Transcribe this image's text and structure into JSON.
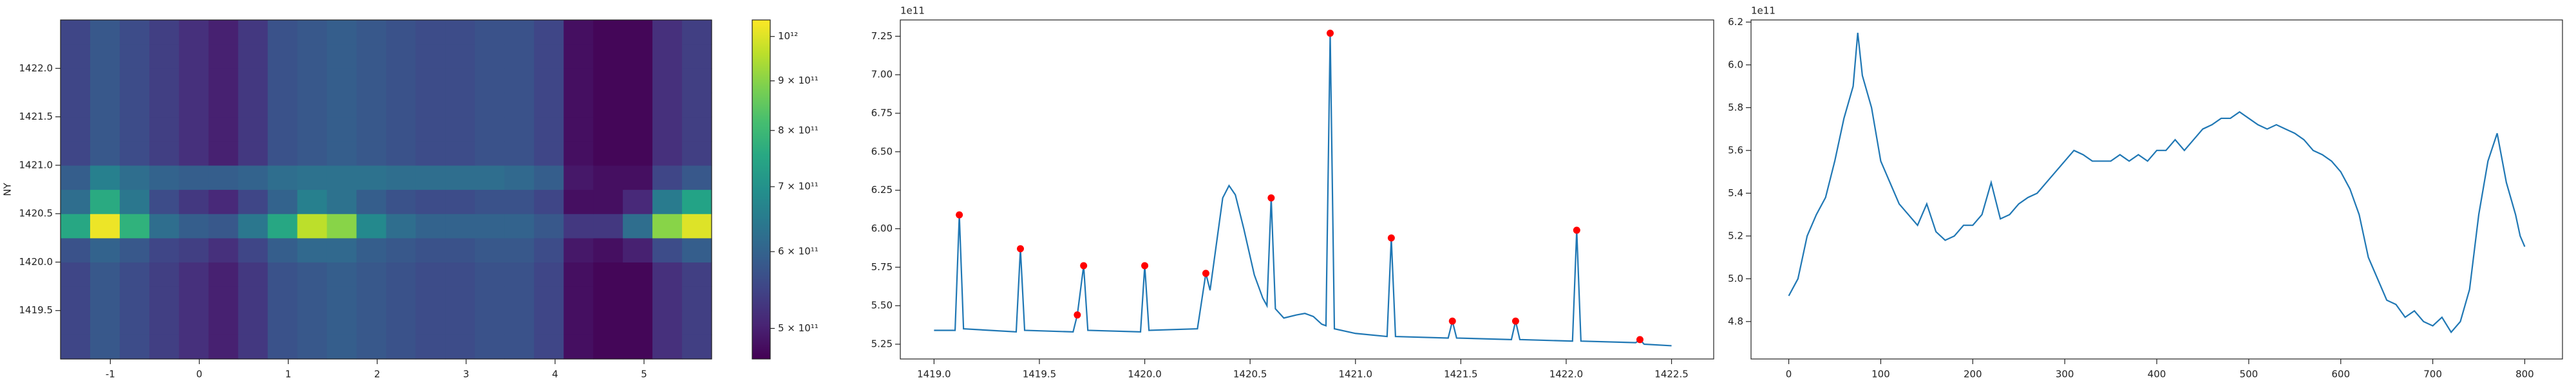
{
  "chart_data": [
    {
      "type": "heatmap",
      "ylabel": "NY",
      "xlim": [
        -1.56,
        5.76
      ],
      "ylim": [
        1419.0,
        1422.5
      ],
      "xticks": [
        -1,
        0,
        1,
        2,
        3,
        4,
        5
      ],
      "yticks": [
        {
          "value": 1419.5,
          "label": "1419.5"
        },
        {
          "value": 1420.0,
          "label": "1420.0"
        },
        {
          "value": 1420.5,
          "label": "1420.5"
        },
        {
          "value": 1421.0,
          "label": "1421.0"
        },
        {
          "value": 1421.5,
          "label": "1421.5"
        },
        {
          "value": 1422.0,
          "label": "1422.0"
        }
      ],
      "colormap": "viridis",
      "log_color": true,
      "clim": [
        465000000000.0,
        1040000000000.0
      ],
      "cticks": [
        {
          "value": 500000000000.0,
          "label": "5 × 10¹¹"
        },
        {
          "value": 600000000000.0,
          "label": "6 × 10¹¹"
        },
        {
          "value": 700000000000.0,
          "label": "7 × 10¹¹"
        },
        {
          "value": 800000000000.0,
          "label": "8 × 10¹¹"
        },
        {
          "value": 900000000000.0,
          "label": "9 × 10¹¹"
        },
        {
          "value": 1000000000000.0,
          "label": "10¹²"
        }
      ],
      "values": [
        [
          550000000000.0,
          580000000000.0,
          560000000000.0,
          540000000000.0,
          520000000000.0,
          500000000000.0,
          530000000000.0,
          570000000000.0,
          580000000000.0,
          590000000000.0,
          580000000000.0,
          570000000000.0,
          560000000000.0,
          560000000000.0,
          570000000000.0,
          570000000000.0,
          550000000000.0,
          480000000000.0,
          470000000000.0,
          470000000000.0,
          520000000000.0,
          540000000000.0
        ],
        [
          550000000000.0,
          580000000000.0,
          560000000000.0,
          540000000000.0,
          520000000000.0,
          500000000000.0,
          530000000000.0,
          570000000000.0,
          580000000000.0,
          590000000000.0,
          580000000000.0,
          570000000000.0,
          560000000000.0,
          560000000000.0,
          570000000000.0,
          570000000000.0,
          550000000000.0,
          480000000000.0,
          470000000000.0,
          470000000000.0,
          520000000000.0,
          540000000000.0
        ],
        [
          550000000000.0,
          580000000000.0,
          560000000000.0,
          540000000000.0,
          520000000000.0,
          500000000000.0,
          530000000000.0,
          570000000000.0,
          580000000000.0,
          590000000000.0,
          580000000000.0,
          570000000000.0,
          560000000000.0,
          560000000000.0,
          570000000000.0,
          570000000000.0,
          550000000000.0,
          480000000000.0,
          470000000000.0,
          470000000000.0,
          520000000000.0,
          540000000000.0
        ],
        [
          550000000000.0,
          580000000000.0,
          560000000000.0,
          540000000000.0,
          520000000000.0,
          500000000000.0,
          530000000000.0,
          570000000000.0,
          580000000000.0,
          590000000000.0,
          580000000000.0,
          570000000000.0,
          560000000000.0,
          560000000000.0,
          570000000000.0,
          570000000000.0,
          550000000000.0,
          480000000000.0,
          470000000000.0,
          470000000000.0,
          520000000000.0,
          540000000000.0
        ],
        [
          570000000000.0,
          600000000000.0,
          580000000000.0,
          550000000000.0,
          540000000000.0,
          520000000000.0,
          550000000000.0,
          590000000000.0,
          610000000000.0,
          610000000000.0,
          590000000000.0,
          580000000000.0,
          570000000000.0,
          570000000000.0,
          580000000000.0,
          580000000000.0,
          560000000000.0,
          490000000000.0,
          480000000000.0,
          500000000000.0,
          560000000000.0,
          590000000000.0
        ],
        [
          750000000000.0,
          1020000000000.0,
          780000000000.0,
          620000000000.0,
          590000000000.0,
          580000000000.0,
          640000000000.0,
          750000000000.0,
          960000000000.0,
          900000000000.0,
          680000000000.0,
          620000000000.0,
          600000000000.0,
          600000000000.0,
          600000000000.0,
          600000000000.0,
          580000000000.0,
          530000000000.0,
          530000000000.0,
          620000000000.0,
          900000000000.0,
          1000000000000.0
        ],
        [
          620000000000.0,
          760000000000.0,
          640000000000.0,
          560000000000.0,
          530000000000.0,
          510000000000.0,
          550000000000.0,
          600000000000.0,
          660000000000.0,
          630000000000.0,
          590000000000.0,
          570000000000.0,
          560000000000.0,
          560000000000.0,
          570000000000.0,
          570000000000.0,
          550000000000.0,
          480000000000.0,
          480000000000.0,
          510000000000.0,
          650000000000.0,
          740000000000.0
        ],
        [
          590000000000.0,
          660000000000.0,
          620000000000.0,
          600000000000.0,
          590000000000.0,
          590000000000.0,
          600000000000.0,
          620000000000.0,
          630000000000.0,
          630000000000.0,
          630000000000.0,
          620000000000.0,
          620000000000.0,
          620000000000.0,
          620000000000.0,
          610000000000.0,
          590000000000.0,
          490000000000.0,
          480000000000.0,
          480000000000.0,
          550000000000.0,
          580000000000.0
        ],
        [
          550000000000.0,
          580000000000.0,
          560000000000.0,
          540000000000.0,
          520000000000.0,
          500000000000.0,
          530000000000.0,
          570000000000.0,
          580000000000.0,
          590000000000.0,
          580000000000.0,
          570000000000.0,
          560000000000.0,
          560000000000.0,
          570000000000.0,
          570000000000.0,
          550000000000.0,
          480000000000.0,
          470000000000.0,
          470000000000.0,
          520000000000.0,
          540000000000.0
        ],
        [
          550000000000.0,
          580000000000.0,
          560000000000.0,
          540000000000.0,
          520000000000.0,
          500000000000.0,
          530000000000.0,
          570000000000.0,
          580000000000.0,
          590000000000.0,
          580000000000.0,
          570000000000.0,
          560000000000.0,
          560000000000.0,
          570000000000.0,
          570000000000.0,
          550000000000.0,
          480000000000.0,
          470000000000.0,
          470000000000.0,
          520000000000.0,
          540000000000.0
        ],
        [
          550000000000.0,
          580000000000.0,
          560000000000.0,
          540000000000.0,
          520000000000.0,
          500000000000.0,
          530000000000.0,
          570000000000.0,
          580000000000.0,
          590000000000.0,
          580000000000.0,
          570000000000.0,
          560000000000.0,
          560000000000.0,
          570000000000.0,
          570000000000.0,
          550000000000.0,
          480000000000.0,
          470000000000.0,
          470000000000.0,
          520000000000.0,
          540000000000.0
        ],
        [
          550000000000.0,
          580000000000.0,
          560000000000.0,
          540000000000.0,
          520000000000.0,
          500000000000.0,
          530000000000.0,
          570000000000.0,
          580000000000.0,
          590000000000.0,
          580000000000.0,
          570000000000.0,
          560000000000.0,
          560000000000.0,
          570000000000.0,
          570000000000.0,
          550000000000.0,
          480000000000.0,
          470000000000.0,
          470000000000.0,
          520000000000.0,
          540000000000.0
        ],
        [
          550000000000.0,
          580000000000.0,
          560000000000.0,
          540000000000.0,
          520000000000.0,
          500000000000.0,
          530000000000.0,
          570000000000.0,
          580000000000.0,
          590000000000.0,
          580000000000.0,
          570000000000.0,
          560000000000.0,
          560000000000.0,
          570000000000.0,
          570000000000.0,
          550000000000.0,
          480000000000.0,
          470000000000.0,
          470000000000.0,
          520000000000.0,
          540000000000.0
        ],
        [
          550000000000.0,
          580000000000.0,
          560000000000.0,
          540000000000.0,
          520000000000.0,
          500000000000.0,
          530000000000.0,
          570000000000.0,
          580000000000.0,
          590000000000.0,
          580000000000.0,
          570000000000.0,
          560000000000.0,
          560000000000.0,
          570000000000.0,
          570000000000.0,
          550000000000.0,
          480000000000.0,
          470000000000.0,
          470000000000.0,
          520000000000.0,
          540000000000.0
        ]
      ]
    },
    {
      "type": "line",
      "offset_label": "1e11",
      "xlim": [
        1418.84,
        1422.7
      ],
      "ylim": [
        5.154,
        7.356
      ],
      "xticks": [
        {
          "value": 1419.0,
          "label": "1419.0"
        },
        {
          "value": 1419.5,
          "label": "1419.5"
        },
        {
          "value": 1420.0,
          "label": "1420.0"
        },
        {
          "value": 1420.5,
          "label": "1420.5"
        },
        {
          "value": 1421.0,
          "label": "1421.0"
        },
        {
          "value": 1421.5,
          "label": "1421.5"
        },
        {
          "value": 1422.0,
          "label": "1422.0"
        },
        {
          "value": 1422.5,
          "label": "1422.5"
        }
      ],
      "yticks": [
        5.25,
        {
          "value": 5.5,
          "label": "5.50"
        },
        5.75,
        {
          "value": 6.0,
          "label": "6.00"
        },
        6.25,
        {
          "value": 6.5,
          "label": "6.50"
        },
        6.75,
        {
          "value": 7.0,
          "label": "7.00"
        },
        7.25
      ],
      "x": [
        1419.0,
        1419.1,
        1419.12,
        1419.14,
        1419.39,
        1419.41,
        1419.43,
        1419.66,
        1419.68,
        1419.71,
        1419.73,
        1419.98,
        1420.0,
        1420.02,
        1420.25,
        1420.29,
        1420.31,
        1420.34,
        1420.37,
        1420.4,
        1420.43,
        1420.47,
        1420.52,
        1420.56,
        1420.58,
        1420.6,
        1420.62,
        1420.66,
        1420.72,
        1420.76,
        1420.8,
        1420.84,
        1420.86,
        1420.88,
        1420.9,
        1421.0,
        1421.15,
        1421.17,
        1421.19,
        1421.44,
        1421.46,
        1421.48,
        1421.74,
        1421.76,
        1421.78,
        1422.03,
        1422.05,
        1422.07,
        1422.33,
        1422.35,
        1422.37,
        1422.5
      ],
      "series": [
        {
          "color": "#1f77b4",
          "values": [
            5.34,
            5.34,
            6.09,
            5.35,
            5.33,
            5.87,
            5.34,
            5.33,
            5.44,
            5.76,
            5.34,
            5.33,
            5.76,
            5.34,
            5.35,
            5.71,
            5.6,
            5.9,
            6.2,
            6.28,
            6.22,
            6.0,
            5.7,
            5.55,
            5.5,
            6.2,
            5.48,
            5.42,
            5.44,
            5.45,
            5.43,
            5.38,
            5.37,
            7.27,
            5.35,
            5.32,
            5.3,
            5.94,
            5.3,
            5.29,
            5.4,
            5.29,
            5.28,
            5.4,
            5.28,
            5.27,
            5.99,
            5.27,
            5.26,
            5.28,
            5.25,
            5.24
          ]
        }
      ],
      "peaks": {
        "color": "#ff0000",
        "x": [
          1419.12,
          1419.41,
          1419.68,
          1419.71,
          1420.0,
          1420.29,
          1420.6,
          1420.88,
          1421.17,
          1421.46,
          1421.76,
          1422.05,
          1422.35
        ],
        "values": [
          6.09,
          5.87,
          5.44,
          5.76,
          5.76,
          5.71,
          6.2,
          7.27,
          5.94,
          5.4,
          5.4,
          5.99,
          5.28
        ]
      }
    },
    {
      "type": "line",
      "offset_label": "1e11",
      "xlim": [
        -41,
        841
      ],
      "ylim": [
        4.625,
        6.21
      ],
      "xticks": [
        0,
        100,
        200,
        300,
        400,
        500,
        600,
        700,
        800
      ],
      "yticks": [
        4.8,
        {
          "value": 5.0,
          "label": "5.0"
        },
        5.2,
        5.4,
        5.6,
        5.8,
        {
          "value": 6.0,
          "label": "6.0"
        },
        6.2
      ],
      "x": [
        0,
        10,
        20,
        30,
        40,
        50,
        60,
        70,
        75,
        80,
        90,
        100,
        110,
        120,
        130,
        140,
        150,
        160,
        170,
        180,
        190,
        200,
        210,
        220,
        230,
        240,
        250,
        260,
        270,
        280,
        290,
        300,
        310,
        320,
        330,
        340,
        350,
        360,
        370,
        380,
        390,
        400,
        410,
        420,
        430,
        440,
        450,
        460,
        470,
        480,
        490,
        500,
        510,
        520,
        530,
        540,
        550,
        560,
        570,
        580,
        590,
        600,
        610,
        620,
        630,
        640,
        650,
        660,
        670,
        680,
        690,
        700,
        710,
        720,
        730,
        740,
        750,
        760,
        770,
        780,
        790,
        795,
        800
      ],
      "series": [
        {
          "color": "#1f77b4",
          "values": [
            4.92,
            5.0,
            5.2,
            5.3,
            5.38,
            5.55,
            5.75,
            5.9,
            6.15,
            5.95,
            5.8,
            5.55,
            5.45,
            5.35,
            5.3,
            5.25,
            5.35,
            5.22,
            5.18,
            5.2,
            5.25,
            5.25,
            5.3,
            5.45,
            5.28,
            5.3,
            5.35,
            5.38,
            5.4,
            5.45,
            5.5,
            5.55,
            5.6,
            5.58,
            5.55,
            5.55,
            5.55,
            5.58,
            5.55,
            5.58,
            5.55,
            5.6,
            5.6,
            5.65,
            5.6,
            5.65,
            5.7,
            5.72,
            5.75,
            5.75,
            5.78,
            5.75,
            5.72,
            5.7,
            5.72,
            5.7,
            5.68,
            5.65,
            5.6,
            5.58,
            5.55,
            5.5,
            5.42,
            5.3,
            5.1,
            5.0,
            4.9,
            4.88,
            4.82,
            4.85,
            4.8,
            4.78,
            4.82,
            4.75,
            4.8,
            4.95,
            5.3,
            5.55,
            5.68,
            5.45,
            5.3,
            5.2,
            5.15
          ]
        }
      ]
    }
  ]
}
